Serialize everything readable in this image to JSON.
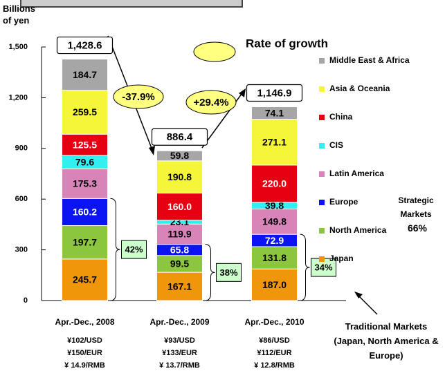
{
  "chart_data": {
    "type": "stacked_bar",
    "y_label": "Billions of yen",
    "categories": [
      "Apr.-Dec., 2008",
      "Apr.-Dec., 2009",
      "Apr.-Dec., 2010"
    ],
    "exchange_rates": [
      [
        "¥102/USD",
        "¥150/EUR",
        "¥ 14.9/RMB"
      ],
      [
        "¥93/USD",
        "¥133/EUR",
        "¥ 13.7/RMB"
      ],
      [
        "¥86/USD",
        "¥112/EUR",
        "¥ 12.8/RMB"
      ]
    ],
    "ylim": [
      0,
      1500
    ],
    "yticks": [
      0,
      300,
      600,
      900,
      {
        "value": 1200,
        "label": "1,200"
      },
      {
        "value": 1500,
        "label": "1,500"
      }
    ],
    "series": [
      {
        "name": "Japan",
        "color": "#f0960a",
        "values": [
          245.7,
          167.1,
          187.0
        ],
        "value_labels": [
          "245.7",
          "167.1",
          "187.0"
        ]
      },
      {
        "name": "North America",
        "color": "#8cc63f",
        "values": [
          197.7,
          99.5,
          131.8
        ],
        "value_labels": [
          "197.7",
          "99.5",
          "131.8"
        ]
      },
      {
        "name": "Europe",
        "color": "#0a14f0",
        "values": [
          160.2,
          65.8,
          72.9
        ],
        "value_labels": [
          "160.2",
          "65.8",
          "72.9"
        ]
      },
      {
        "name": "Latin America",
        "color": "#d884b8",
        "values": [
          175.3,
          119.9,
          149.8
        ],
        "value_labels": [
          "175.3",
          "119.9",
          "149.8"
        ]
      },
      {
        "name": "CIS",
        "color": "#33f0f0",
        "values": [
          79.6,
          23.1,
          39.8
        ],
        "value_labels": [
          "79.6",
          "23.1",
          "39.8"
        ]
      },
      {
        "name": "China",
        "color": "#e60012",
        "values": [
          125.5,
          160.0,
          220.0
        ],
        "value_labels": [
          "125.5",
          "160.0",
          "220.0"
        ]
      },
      {
        "name": "Asia & Oceania",
        "color": "#f5f53a",
        "values": [
          259.5,
          190.8,
          271.1
        ],
        "value_labels": [
          "259.5",
          "190.8",
          "271.1"
        ]
      },
      {
        "name": "Middle East & Africa",
        "color": "#a6a6a6",
        "values": [
          184.7,
          59.8,
          74.1
        ],
        "value_labels": [
          "184.7",
          "59.8",
          "74.1"
        ]
      }
    ],
    "totals": [
      1428.6,
      886.4,
      1146.9
    ],
    "total_labels": [
      "1,428.6",
      "886.4",
      "1,146.9"
    ],
    "growth_legend": "Rate of growth",
    "growth": [
      "-37.9%",
      "+29.4%"
    ],
    "traditional_share": [
      "42%",
      "38%",
      "34%"
    ],
    "strategic_label": "Strategic Markets",
    "strategic_share": "66%",
    "traditional_label": "Traditional Markets (Japan, North America & Europe)"
  }
}
